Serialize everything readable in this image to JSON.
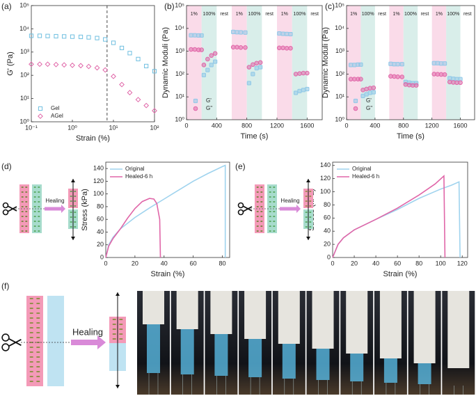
{
  "chart_data": [
    {
      "type": "scatter",
      "panel_label": "(a)",
      "x_label": "Strain (%)",
      "y_label": "G' (Pa)",
      "xlog": true,
      "ylog": true,
      "xlim": [
        0.1,
        100
      ],
      "ylim": [
        1,
        100000
      ],
      "xticks": [
        {
          "value": 0.1,
          "label": "10⁻¹"
        },
        {
          "value": 1,
          "label": "10⁰"
        },
        {
          "value": 10,
          "label": "10¹"
        },
        {
          "value": 100,
          "label": "10²"
        }
      ],
      "yticks": [
        {
          "value": 1,
          "label": "10⁰"
        },
        {
          "value": 10,
          "label": "10¹"
        },
        {
          "value": 100,
          "label": "10²"
        },
        {
          "value": 1000,
          "label": "10³"
        },
        {
          "value": 10000,
          "label": "10⁴"
        },
        {
          "value": 100000,
          "label": "10⁵"
        }
      ],
      "vline": 7,
      "legend": "lower left",
      "series": [
        {
          "name": "Gel",
          "color": "#6fbfe0",
          "marker": "square",
          "x": [
            0.1,
            0.16,
            0.25,
            0.4,
            0.63,
            1,
            1.6,
            2.5,
            4,
            6.3,
            10,
            16,
            25,
            40,
            63,
            100
          ],
          "values": [
            5000,
            5000,
            4900,
            4800,
            4700,
            4600,
            4500,
            4300,
            4000,
            3500,
            2500,
            1500,
            900,
            500,
            250,
            150
          ]
        },
        {
          "name": "AGel",
          "color": "#e066a8",
          "marker": "diamond",
          "x": [
            0.1,
            0.16,
            0.25,
            0.4,
            0.63,
            1,
            1.6,
            2.5,
            4,
            6.3,
            10,
            16,
            25,
            40,
            63,
            100
          ],
          "values": [
            300,
            300,
            300,
            290,
            280,
            270,
            260,
            240,
            210,
            170,
            90,
            40,
            18,
            9,
            5,
            3
          ]
        }
      ]
    },
    {
      "type": "scatter",
      "panel_label": "(b)",
      "x_label": "Time (s)",
      "y_label": "Dynamic Moduli (Pa)",
      "ylog": true,
      "xlim": [
        0,
        1800
      ],
      "ylim": [
        1,
        100000
      ],
      "xticks": [
        0,
        400,
        800,
        1200,
        1600
      ],
      "yticks": [
        {
          "value": 1,
          "label": "10⁰"
        },
        {
          "value": 10,
          "label": "10¹"
        },
        {
          "value": 100,
          "label": "10²"
        },
        {
          "value": 1000,
          "label": "10³"
        },
        {
          "value": 10000,
          "label": "10⁴"
        },
        {
          "value": 100000,
          "label": "10⁵"
        }
      ],
      "regions": [
        {
          "label": "1%",
          "start": 0,
          "end": 200,
          "color": "#fadbe9"
        },
        {
          "label": "100%",
          "start": 200,
          "end": 400,
          "color": "#d9eeea"
        },
        {
          "label": "rest",
          "start": 400,
          "end": 600
        },
        {
          "label": "1%",
          "start": 600,
          "end": 800,
          "color": "#fadbe9"
        },
        {
          "label": "100%",
          "start": 800,
          "end": 1000,
          "color": "#d9eeea"
        },
        {
          "label": "rest",
          "start": 1000,
          "end": 1200
        },
        {
          "label": "1%",
          "start": 1200,
          "end": 1400,
          "color": "#fadbe9"
        },
        {
          "label": "100%",
          "start": 1400,
          "end": 1600,
          "color": "#d9eeea"
        },
        {
          "label": "rest",
          "start": 1600,
          "end": 1800
        }
      ],
      "legend": "lower left",
      "series": [
        {
          "name": "G'",
          "color": "#8fc8e8",
          "marker": "square",
          "x": [
            60,
            110,
            160,
            200,
            230,
            280,
            330,
            380,
            620,
            670,
            720,
            780,
            830,
            880,
            930,
            980,
            1230,
            1280,
            1330,
            1380,
            1450,
            1500,
            1550,
            1600
          ],
          "values": [
            5000,
            5000,
            4900,
            4900,
            90,
            150,
            250,
            350,
            7000,
            6800,
            6700,
            6600,
            40,
            100,
            180,
            200,
            6000,
            5800,
            5700,
            5600,
            15,
            18,
            20,
            22
          ]
        },
        {
          "name": "G''",
          "color": "#e066a8",
          "marker": "circle",
          "x": [
            60,
            110,
            160,
            200,
            230,
            280,
            330,
            380,
            620,
            670,
            720,
            780,
            830,
            880,
            930,
            980,
            1230,
            1280,
            1330,
            1380,
            1450,
            1500,
            1550,
            1600
          ],
          "values": [
            1200,
            1200,
            1150,
            1150,
            250,
            450,
            650,
            800,
            1500,
            1500,
            1450,
            1450,
            200,
            260,
            300,
            320,
            1400,
            1400,
            1350,
            1350,
            100,
            105,
            110,
            110
          ]
        }
      ]
    },
    {
      "type": "scatter",
      "panel_label": "(c)",
      "x_label": "Time (s)",
      "y_label": "Dynamic Moduli (Pa)",
      "ylog": true,
      "xlim": [
        0,
        1800
      ],
      "ylim": [
        1,
        100000
      ],
      "xticks": [
        0,
        400,
        800,
        1200,
        1600
      ],
      "yticks": [
        {
          "value": 1,
          "label": "10⁰"
        },
        {
          "value": 10,
          "label": "10¹"
        },
        {
          "value": 100,
          "label": "10²"
        },
        {
          "value": 1000,
          "label": "10³"
        },
        {
          "value": 10000,
          "label": "10⁴"
        },
        {
          "value": 100000,
          "label": "10⁵"
        }
      ],
      "regions": [
        {
          "label": "1%",
          "start": 0,
          "end": 200,
          "color": "#fadbe9"
        },
        {
          "label": "100%",
          "start": 200,
          "end": 400,
          "color": "#d9eeea"
        },
        {
          "label": "rest",
          "start": 400,
          "end": 600
        },
        {
          "label": "1%",
          "start": 600,
          "end": 800,
          "color": "#fadbe9"
        },
        {
          "label": "100%",
          "start": 800,
          "end": 1000,
          "color": "#d9eeea"
        },
        {
          "label": "rest",
          "start": 1000,
          "end": 1200
        },
        {
          "label": "1%",
          "start": 1200,
          "end": 1400,
          "color": "#fadbe9"
        },
        {
          "label": "100%",
          "start": 1400,
          "end": 1600,
          "color": "#d9eeea"
        },
        {
          "label": "rest",
          "start": 1600,
          "end": 1800
        }
      ],
      "legend": "lower left",
      "series": [
        {
          "name": "G'",
          "color": "#8fc8e8",
          "marker": "square",
          "x": [
            60,
            110,
            160,
            200,
            230,
            280,
            330,
            380,
            620,
            670,
            720,
            780,
            830,
            880,
            930,
            980,
            1230,
            1280,
            1330,
            1380,
            1450,
            1500,
            1550,
            1600
          ],
          "values": [
            250,
            250,
            260,
            260,
            11,
            13,
            15,
            16,
            280,
            270,
            270,
            270,
            45,
            42,
            40,
            40,
            300,
            300,
            290,
            290,
            65,
            62,
            60,
            60
          ]
        },
        {
          "name": "G''",
          "color": "#e066a8",
          "marker": "circle",
          "x": [
            60,
            110,
            160,
            200,
            230,
            280,
            330,
            380,
            620,
            670,
            720,
            780,
            830,
            880,
            930,
            980,
            1230,
            1280,
            1330,
            1380,
            1450,
            1500,
            1550,
            1600
          ],
          "values": [
            60,
            60,
            60,
            60,
            20,
            22,
            24,
            25,
            80,
            78,
            76,
            75,
            35,
            33,
            32,
            32,
            100,
            98,
            96,
            95,
            45,
            43,
            42,
            42
          ]
        }
      ]
    },
    {
      "type": "line",
      "panel_label": "(d)",
      "schematic_label": "Healing",
      "x_label": "Strain (%)",
      "y_label": "Stress (kPa)",
      "xlim": [
        0,
        85
      ],
      "ylim": [
        0,
        150
      ],
      "xticks": [
        0,
        20,
        40,
        60,
        80
      ],
      "yticks": [
        0,
        20,
        40,
        60,
        80,
        100,
        120,
        140
      ],
      "legend": "upper left",
      "series": [
        {
          "name": "Original",
          "color": "#9fd3ee",
          "x": [
            0,
            2,
            5,
            10,
            20,
            30,
            40,
            50,
            60,
            70,
            80,
            82,
            82
          ],
          "values": [
            0,
            20,
            32,
            45,
            63,
            78,
            92,
            106,
            120,
            132,
            143,
            145,
            0
          ]
        },
        {
          "name": "Healed-6 h",
          "color": "#e066a8",
          "x": [
            0,
            2,
            5,
            10,
            15,
            20,
            25,
            30,
            33,
            35,
            37,
            37.5
          ],
          "values": [
            0,
            18,
            30,
            45,
            62,
            77,
            88,
            93,
            92,
            85,
            60,
            0
          ]
        }
      ]
    },
    {
      "type": "line",
      "panel_label": "(e)",
      "schematic_label": "Healing",
      "x_label": "Strain (%)",
      "y_label": "Stress (kPa)",
      "xlim": [
        0,
        125
      ],
      "ylim": [
        0,
        145
      ],
      "xticks": [
        0,
        20,
        40,
        60,
        80,
        100,
        120
      ],
      "yticks": [
        0,
        20,
        40,
        60,
        80,
        100,
        120,
        140
      ],
      "legend": "upper left",
      "series": [
        {
          "name": "Original",
          "color": "#9fd3ee",
          "x": [
            0,
            5,
            10,
            20,
            40,
            60,
            80,
            100,
            110,
            117,
            118
          ],
          "values": [
            0,
            20,
            30,
            42,
            58,
            73,
            90,
            104,
            110,
            115,
            0
          ]
        },
        {
          "name": "Healed-6 h",
          "color": "#e066a8",
          "x": [
            0,
            5,
            10,
            20,
            40,
            60,
            80,
            95,
            103,
            104
          ],
          "values": [
            0,
            20,
            30,
            42,
            58,
            75,
            95,
            112,
            124,
            0
          ]
        }
      ]
    }
  ],
  "panel_f": {
    "panel_label": "(f)",
    "schematic_label": "Healing"
  }
}
